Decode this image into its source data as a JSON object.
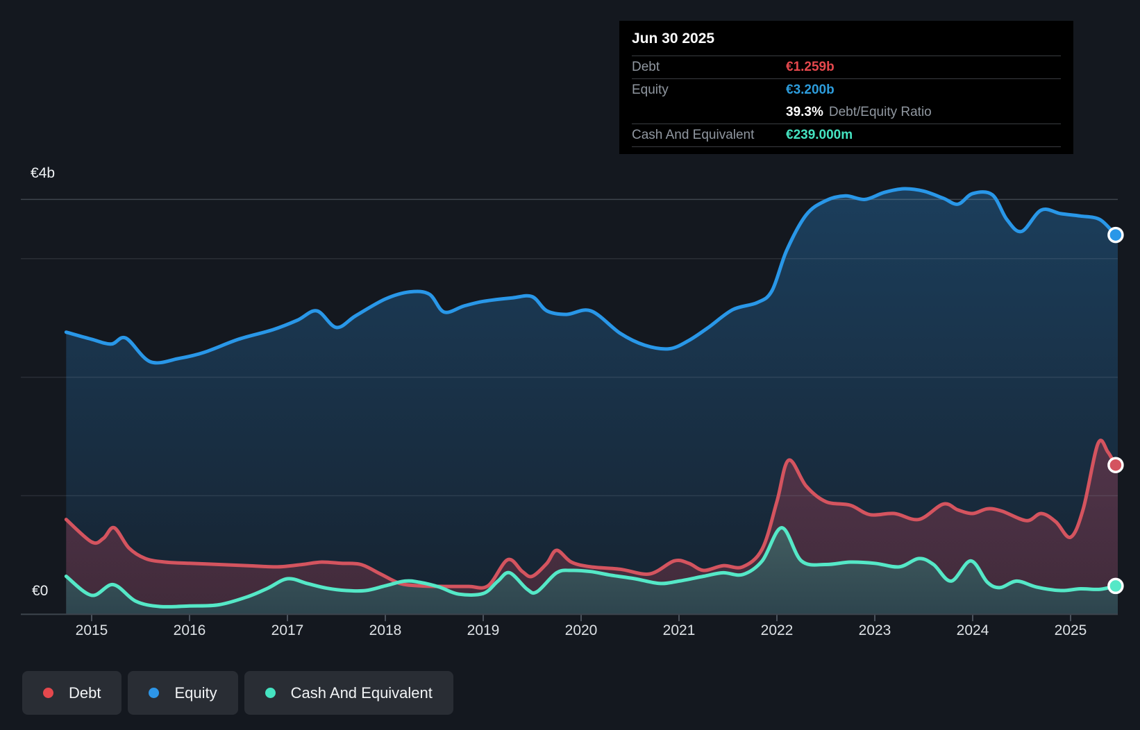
{
  "tooltip": {
    "title": "Jun 30 2025",
    "debt_label": "Debt",
    "debt_value": "€1.259b",
    "debt_color": "#e5484d",
    "equity_label": "Equity",
    "equity_value": "€3.200b",
    "equity_color": "#2d9cdb",
    "ratio_value": "39.3%",
    "ratio_label": "Debt/Equity Ratio",
    "cash_label": "Cash And Equivalent",
    "cash_value": "€239.000m",
    "cash_color": "#45e3c1"
  },
  "axis": {
    "y_max_label": "€4b",
    "y_zero_label": "€0",
    "years": [
      "2015",
      "2016",
      "2017",
      "2018",
      "2019",
      "2020",
      "2021",
      "2022",
      "2023",
      "2024",
      "2025"
    ]
  },
  "legend": {
    "items": [
      {
        "label": "Debt",
        "color": "#e5484d"
      },
      {
        "label": "Equity",
        "color": "#2d96e8"
      },
      {
        "label": "Cash And Equivalent",
        "color": "#45e3c1"
      }
    ]
  },
  "chart_data": {
    "type": "area",
    "title": "Debt to Equity History",
    "x_domain": [
      2014.74,
      2025.48
    ],
    "y_domain": [
      0,
      4
    ],
    "y_unit": "€ billions",
    "y_gridline_values": [
      3.5,
      3,
      2,
      1
    ],
    "x_tick_years": [
      2015,
      2016,
      2017,
      2018,
      2019,
      2020,
      2021,
      2022,
      2023,
      2024,
      2025
    ],
    "grid": true,
    "legend_position": "bottom-left",
    "series": [
      {
        "name": "Equity",
        "color": "#2997e8",
        "points": [
          [
            2014.74,
            2.38
          ],
          [
            2015.0,
            2.32
          ],
          [
            2015.2,
            2.28
          ],
          [
            2015.35,
            2.33
          ],
          [
            2015.6,
            2.13
          ],
          [
            2015.9,
            2.16
          ],
          [
            2016.15,
            2.21
          ],
          [
            2016.5,
            2.32
          ],
          [
            2016.85,
            2.4
          ],
          [
            2017.1,
            2.48
          ],
          [
            2017.3,
            2.56
          ],
          [
            2017.5,
            2.42
          ],
          [
            2017.7,
            2.52
          ],
          [
            2018.0,
            2.66
          ],
          [
            2018.25,
            2.72
          ],
          [
            2018.45,
            2.7
          ],
          [
            2018.6,
            2.55
          ],
          [
            2018.8,
            2.6
          ],
          [
            2019.0,
            2.64
          ],
          [
            2019.3,
            2.67
          ],
          [
            2019.5,
            2.68
          ],
          [
            2019.65,
            2.56
          ],
          [
            2019.85,
            2.53
          ],
          [
            2020.1,
            2.56
          ],
          [
            2020.4,
            2.37
          ],
          [
            2020.65,
            2.27
          ],
          [
            2020.9,
            2.24
          ],
          [
            2021.1,
            2.31
          ],
          [
            2021.3,
            2.42
          ],
          [
            2021.55,
            2.57
          ],
          [
            2021.8,
            2.63
          ],
          [
            2021.95,
            2.73
          ],
          [
            2022.1,
            3.07
          ],
          [
            2022.3,
            3.37
          ],
          [
            2022.5,
            3.49
          ],
          [
            2022.7,
            3.53
          ],
          [
            2022.9,
            3.5
          ],
          [
            2023.1,
            3.56
          ],
          [
            2023.3,
            3.59
          ],
          [
            2023.5,
            3.57
          ],
          [
            2023.7,
            3.51
          ],
          [
            2023.85,
            3.46
          ],
          [
            2024.0,
            3.55
          ],
          [
            2024.2,
            3.54
          ],
          [
            2024.35,
            3.33
          ],
          [
            2024.5,
            3.23
          ],
          [
            2024.7,
            3.41
          ],
          [
            2024.9,
            3.38
          ],
          [
            2025.1,
            3.36
          ],
          [
            2025.3,
            3.33
          ],
          [
            2025.46,
            3.2
          ]
        ],
        "end_value": 3.2
      },
      {
        "name": "Debt",
        "color": "#d4545f",
        "points": [
          [
            2014.74,
            0.8
          ],
          [
            2015.0,
            0.61
          ],
          [
            2015.12,
            0.64
          ],
          [
            2015.23,
            0.73
          ],
          [
            2015.38,
            0.56
          ],
          [
            2015.55,
            0.47
          ],
          [
            2015.75,
            0.44
          ],
          [
            2016.0,
            0.43
          ],
          [
            2016.3,
            0.42
          ],
          [
            2016.6,
            0.41
          ],
          [
            2016.9,
            0.4
          ],
          [
            2017.15,
            0.42
          ],
          [
            2017.35,
            0.44
          ],
          [
            2017.55,
            0.43
          ],
          [
            2017.75,
            0.42
          ],
          [
            2017.95,
            0.34
          ],
          [
            2018.15,
            0.26
          ],
          [
            2018.35,
            0.24
          ],
          [
            2018.6,
            0.235
          ],
          [
            2018.85,
            0.235
          ],
          [
            2019.05,
            0.24
          ],
          [
            2019.25,
            0.46
          ],
          [
            2019.4,
            0.36
          ],
          [
            2019.5,
            0.32
          ],
          [
            2019.65,
            0.43
          ],
          [
            2019.75,
            0.54
          ],
          [
            2019.9,
            0.44
          ],
          [
            2020.1,
            0.4
          ],
          [
            2020.4,
            0.38
          ],
          [
            2020.7,
            0.34
          ],
          [
            2020.95,
            0.45
          ],
          [
            2021.1,
            0.43
          ],
          [
            2021.25,
            0.37
          ],
          [
            2021.45,
            0.41
          ],
          [
            2021.65,
            0.4
          ],
          [
            2021.85,
            0.55
          ],
          [
            2022.0,
            0.95
          ],
          [
            2022.12,
            1.3
          ],
          [
            2022.3,
            1.08
          ],
          [
            2022.5,
            0.95
          ],
          [
            2022.75,
            0.92
          ],
          [
            2022.95,
            0.84
          ],
          [
            2023.2,
            0.85
          ],
          [
            2023.45,
            0.8
          ],
          [
            2023.7,
            0.93
          ],
          [
            2023.85,
            0.88
          ],
          [
            2024.0,
            0.85
          ],
          [
            2024.15,
            0.89
          ],
          [
            2024.3,
            0.87
          ],
          [
            2024.55,
            0.79
          ],
          [
            2024.7,
            0.85
          ],
          [
            2024.85,
            0.78
          ],
          [
            2025.0,
            0.65
          ],
          [
            2025.13,
            0.89
          ],
          [
            2025.28,
            1.44
          ],
          [
            2025.38,
            1.37
          ],
          [
            2025.46,
            1.259
          ]
        ],
        "end_value": 1.259
      },
      {
        "name": "Cash And Equivalent",
        "color": "#55e8c7",
        "points": [
          [
            2014.74,
            0.32
          ],
          [
            2015.0,
            0.16
          ],
          [
            2015.22,
            0.25
          ],
          [
            2015.45,
            0.11
          ],
          [
            2015.7,
            0.065
          ],
          [
            2016.0,
            0.07
          ],
          [
            2016.3,
            0.08
          ],
          [
            2016.6,
            0.15
          ],
          [
            2016.8,
            0.22
          ],
          [
            2017.0,
            0.3
          ],
          [
            2017.2,
            0.26
          ],
          [
            2017.4,
            0.22
          ],
          [
            2017.6,
            0.2
          ],
          [
            2017.8,
            0.2
          ],
          [
            2018.0,
            0.24
          ],
          [
            2018.2,
            0.28
          ],
          [
            2018.35,
            0.27
          ],
          [
            2018.55,
            0.23
          ],
          [
            2018.75,
            0.17
          ],
          [
            2019.0,
            0.175
          ],
          [
            2019.15,
            0.28
          ],
          [
            2019.27,
            0.35
          ],
          [
            2019.45,
            0.21
          ],
          [
            2019.55,
            0.19
          ],
          [
            2019.75,
            0.35
          ],
          [
            2019.9,
            0.37
          ],
          [
            2020.1,
            0.36
          ],
          [
            2020.3,
            0.33
          ],
          [
            2020.55,
            0.3
          ],
          [
            2020.8,
            0.26
          ],
          [
            2021.0,
            0.28
          ],
          [
            2021.25,
            0.32
          ],
          [
            2021.45,
            0.35
          ],
          [
            2021.65,
            0.335
          ],
          [
            2021.85,
            0.45
          ],
          [
            2022.05,
            0.73
          ],
          [
            2022.25,
            0.45
          ],
          [
            2022.5,
            0.42
          ],
          [
            2022.75,
            0.44
          ],
          [
            2023.0,
            0.43
          ],
          [
            2023.25,
            0.4
          ],
          [
            2023.45,
            0.47
          ],
          [
            2023.6,
            0.42
          ],
          [
            2023.78,
            0.28
          ],
          [
            2023.98,
            0.45
          ],
          [
            2024.15,
            0.27
          ],
          [
            2024.28,
            0.225
          ],
          [
            2024.45,
            0.28
          ],
          [
            2024.65,
            0.23
          ],
          [
            2024.9,
            0.2
          ],
          [
            2025.1,
            0.215
          ],
          [
            2025.3,
            0.21
          ],
          [
            2025.46,
            0.239
          ]
        ],
        "end_value": 0.239
      }
    ]
  }
}
